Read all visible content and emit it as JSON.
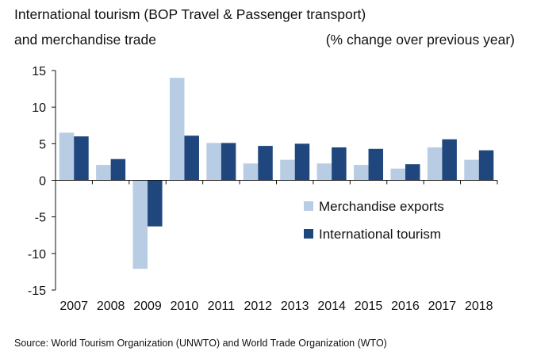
{
  "chart_data": {
    "type": "bar",
    "title_line1": "International tourism (BOP Travel & Passenger transport)",
    "title_line2": "and merchandise trade",
    "title_right": "(% change over previous year)",
    "categories": [
      "2007",
      "2008",
      "2009",
      "2010",
      "2011",
      "2012",
      "2013",
      "2014",
      "2015",
      "2016",
      "2017",
      "2018"
    ],
    "series": [
      {
        "name": "Merchandise exports",
        "color": "#b8cce4",
        "values": [
          6.5,
          2.1,
          -12.1,
          14.0,
          5.1,
          2.3,
          2.8,
          2.3,
          2.1,
          1.6,
          4.5,
          2.8
        ]
      },
      {
        "name": "International tourism",
        "color": "#1f477d",
        "values": [
          6.0,
          2.9,
          -6.3,
          6.1,
          5.1,
          4.7,
          5.0,
          4.5,
          4.3,
          2.2,
          5.6,
          4.1
        ]
      }
    ],
    "yticks": [
      -15,
      -10,
      -5,
      0,
      5,
      10,
      15
    ],
    "ylim": [
      -15,
      15
    ],
    "legend": "bottom-right inside plot",
    "grid": false
  },
  "source": "Source: World Tourism Organization (UNWTO) and World Trade Organization (WTO)"
}
